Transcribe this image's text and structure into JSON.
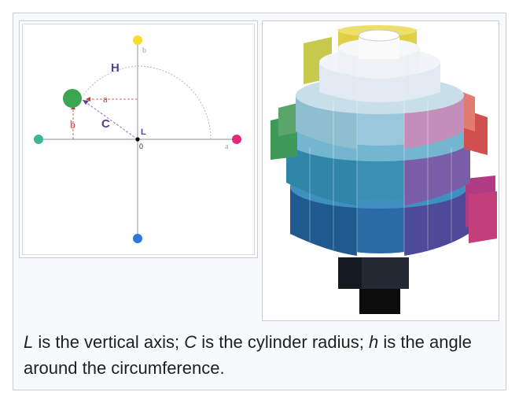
{
  "diagram": {
    "labels": {
      "b_top": "b",
      "a_right": "a",
      "H": "H",
      "a_arrow": "a",
      "b_arrow": "b",
      "C": "C",
      "L": "L",
      "origin": "0"
    },
    "colors": {
      "yellow": "#f7dd2a",
      "teal": "#3db598",
      "pink": "#e32a79",
      "blue": "#2d78d6",
      "green": "#3aa64f",
      "purple": "#5a3d8f",
      "red": "#b54a46"
    }
  },
  "caption": {
    "L": "L",
    "part1": " is the vertical axis; ",
    "C": "C",
    "part2": " is the cylinder radius; ",
    "h": "h",
    "part3": " is the angle around the circumference."
  }
}
